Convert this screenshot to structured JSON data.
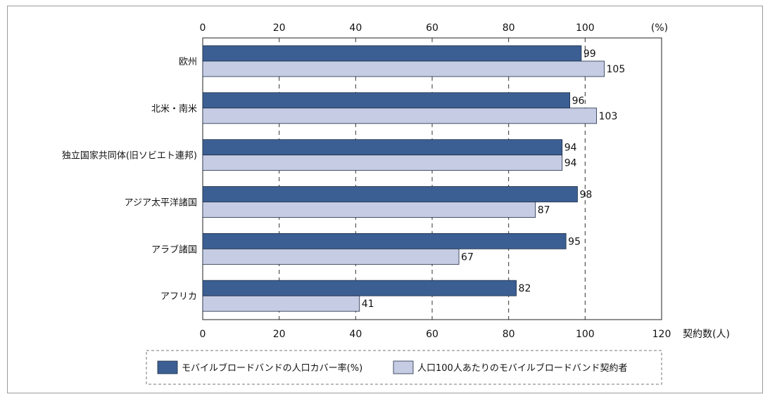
{
  "chart_data": {
    "type": "bar",
    "orientation": "horizontal",
    "categories": [
      "欧州",
      "北米・南米",
      "独立国家共同体(旧ソビエト連邦)",
      "アジア太平洋諸国",
      "アラブ諸国",
      "アフリカ"
    ],
    "series": [
      {
        "name": "モバイルブロードバンドの人口カバー率(%)",
        "values": [
          99,
          96,
          94,
          98,
          95,
          82
        ],
        "color": "#3b5f93"
      },
      {
        "name": "人口100人あたりのモバイルブロードバンド契約者",
        "values": [
          105,
          103,
          94,
          87,
          67,
          41
        ],
        "color": "#c5cce3"
      }
    ],
    "top_axis": {
      "unit": "(%)",
      "ticks": [
        "0",
        "20",
        "40",
        "60",
        "80",
        "100"
      ]
    },
    "bottom_axis": {
      "unit": "契約数(人)",
      "ticks": [
        "0",
        "20",
        "40",
        "60",
        "80",
        "100",
        "120"
      ]
    },
    "xlim": [
      0,
      120
    ],
    "grid": "dashed vertical",
    "legend_position": "bottom"
  }
}
